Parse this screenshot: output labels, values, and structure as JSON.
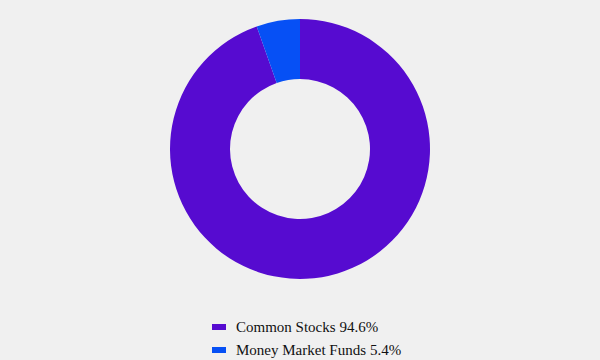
{
  "chart_data": {
    "type": "pie",
    "categories": [
      "Common Stocks",
      "Money Market Funds"
    ],
    "values": [
      94.6,
      5.4
    ],
    "value_labels": [
      "94.6%",
      "5.4%"
    ],
    "colors": [
      "#560bd0",
      "#0650f5"
    ],
    "legend": "bottom"
  }
}
